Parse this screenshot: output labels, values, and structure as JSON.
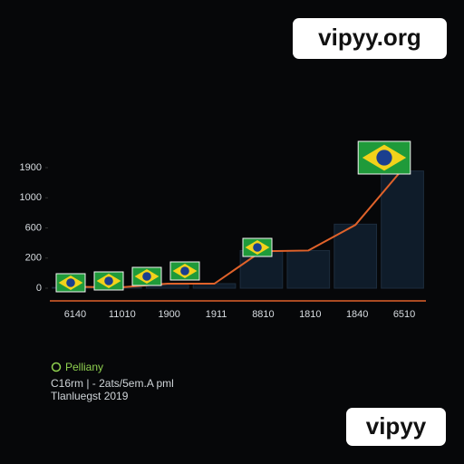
{
  "watermarks": [
    "vipyy.org",
    "vipyy"
  ],
  "chart_data": {
    "type": "bar",
    "categories": [
      "6140",
      "11010",
      "1900",
      "1911",
      "8810",
      "1810",
      "1840",
      "6510"
    ],
    "series": [
      {
        "name": "Pelliany",
        "color": "#0f1c2a",
        "values": [
          5,
          5,
          20,
          30,
          300,
          300,
          650,
          1800
        ]
      },
      {
        "color": "#e0622a",
        "values": [
          10,
          5,
          30,
          30,
          290,
          300,
          640,
          1850
        ]
      }
    ],
    "ylim": [
      0,
      1900
    ],
    "yticks": [
      0,
      200,
      600,
      1000,
      1900
    ],
    "legend": "bottom-left",
    "notes": [
      "C16rm | - 2ats/5em.A pml",
      "Tlanluegst 2019"
    ]
  }
}
